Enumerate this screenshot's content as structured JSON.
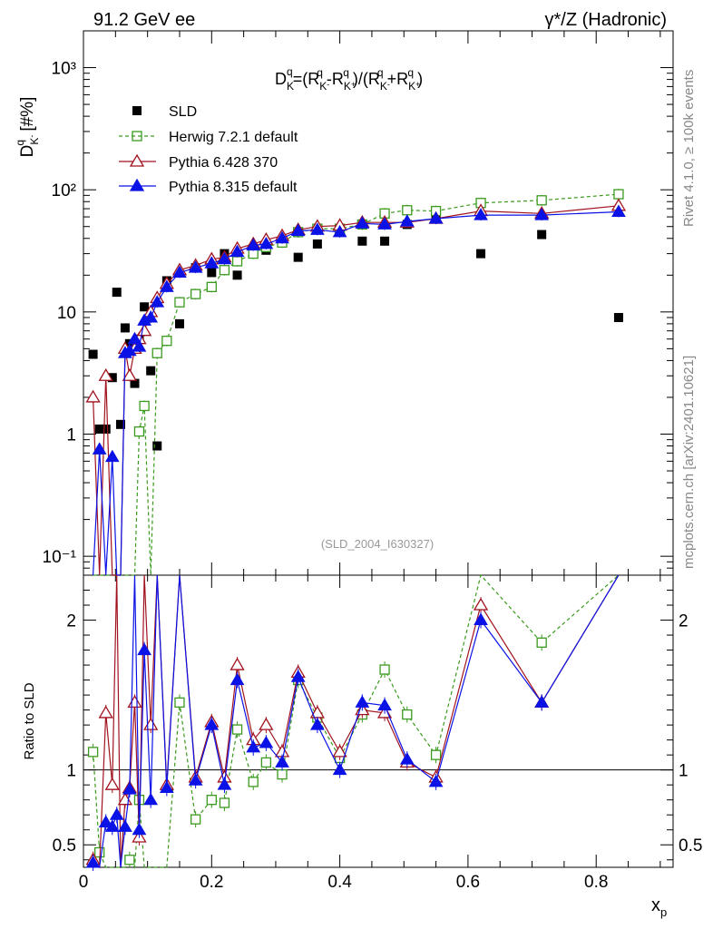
{
  "header": {
    "left_title": "91.2 GeV ee",
    "right_title": "γ*/Z (Hadronic)"
  },
  "side_text": {
    "rivet": "Rivet 4.1.0, ≥ 100k events",
    "mcplots": "mcplots.cern.ch [arXiv:2401.10621]"
  },
  "main_panel": {
    "formula": "D_K^q = (R_K-^q - R_K+^q)/(R_K-^q + R_K+^q)",
    "ylabel": "D_K^q [#%]",
    "yscale": "log",
    "ylim": [
      0.07,
      2000
    ],
    "yticks": [
      {
        "value": 0.1,
        "label": "10⁻¹"
      },
      {
        "value": 1,
        "label": "1"
      },
      {
        "value": 10,
        "label": "10"
      },
      {
        "value": 100,
        "label": "10²"
      },
      {
        "value": 1000,
        "label": "10³"
      }
    ],
    "watermark": "(SLD_2004_I630327)"
  },
  "ratio_panel": {
    "ylabel": "Ratio to SLD",
    "ylim": [
      0.35,
      2.3
    ],
    "yticks": [
      {
        "value": 0.5,
        "label": "0.5"
      },
      {
        "value": 1,
        "label": "1"
      },
      {
        "value": 2,
        "label": "2"
      }
    ]
  },
  "xaxis": {
    "label": "x_p",
    "xlim": [
      0,
      0.92
    ],
    "ticks": [
      {
        "value": 0,
        "label": "0"
      },
      {
        "value": 0.2,
        "label": "0.2"
      },
      {
        "value": 0.4,
        "label": "0.4"
      },
      {
        "value": 0.6,
        "label": "0.6"
      },
      {
        "value": 0.8,
        "label": "0.8"
      }
    ]
  },
  "legend": [
    {
      "key": "sld",
      "label": "SLD"
    },
    {
      "key": "herwig",
      "label": "Herwig 7.2.1 default"
    },
    {
      "key": "py6",
      "label": "Pythia 6.428 370"
    },
    {
      "key": "py8",
      "label": "Pythia 8.315 default"
    }
  ],
  "colors": {
    "sld": "#000000",
    "herwig": "#3a9a1e",
    "py6": "#a0121e",
    "py8": "#0a12e6"
  },
  "chart_data": [
    {
      "type": "scatter",
      "title": "D_K^q",
      "xlabel": "x_p",
      "ylabel": "D_K^q [#%]",
      "yscale": "log",
      "x": [
        0.015,
        0.025,
        0.035,
        0.045,
        0.052,
        0.058,
        0.065,
        0.072,
        0.08,
        0.087,
        0.095,
        0.105,
        0.115,
        0.13,
        0.15,
        0.175,
        0.2,
        0.22,
        0.24,
        0.265,
        0.285,
        0.31,
        0.335,
        0.365,
        0.4,
        0.435,
        0.47,
        0.505,
        0.55,
        0.62,
        0.715,
        0.835
      ],
      "series": [
        {
          "name": "SLD",
          "key": "sld",
          "values": [
            4.5,
            1.1,
            1.1,
            2.9,
            14.5,
            1.2,
            7.4,
            5.5,
            2.6,
            6.0,
            11.0,
            3.3,
            0.8,
            18.0,
            8.0,
            23.0,
            21.0,
            30.0,
            20.0,
            33.0,
            32.0,
            38.0,
            28.0,
            36.0,
            45.0,
            38.0,
            38.0,
            52.0,
            60.0,
            30.0,
            43.0,
            9.0
          ]
        },
        {
          "name": "Herwig 7.2.1 default",
          "key": "herwig",
          "values": [
            0.05,
            0.05,
            0.05,
            0.05,
            0.05,
            0.05,
            0.05,
            0.05,
            0.05,
            1.05,
            1.7,
            0.05,
            4.6,
            5.8,
            12.0,
            14.0,
            16.0,
            22.0,
            26.0,
            30.0,
            34.0,
            37.0,
            45.0,
            48.0,
            48.0,
            52.0,
            64.0,
            68.0,
            67.0,
            78.0,
            82.0,
            92.0
          ]
        },
        {
          "name": "Pythia 6.428 370",
          "key": "py6",
          "values": [
            2.0,
            0.05,
            3.0,
            0.05,
            0.05,
            0.05,
            5.0,
            3.0,
            5.0,
            6.0,
            7.0,
            10.0,
            13.0,
            17.0,
            22.0,
            24.0,
            27.0,
            28.0,
            33.0,
            36.0,
            39.0,
            42.0,
            47.0,
            50.0,
            51.0,
            54.0,
            54.0,
            54.0,
            58.0,
            67.0,
            64.0,
            74.0
          ]
        },
        {
          "name": "Pythia 8.315 default",
          "key": "py8",
          "values": [
            0.05,
            0.75,
            0.05,
            0.65,
            0.05,
            0.05,
            4.6,
            4.8,
            6.0,
            5.2,
            8.5,
            9.0,
            12.0,
            16.0,
            21.0,
            23.0,
            25.0,
            27.0,
            31.0,
            35.0,
            36.0,
            40.0,
            46.0,
            47.0,
            45.0,
            53.0,
            52.0,
            55.0,
            58.0,
            62.0,
            62.0,
            66.0
          ]
        }
      ]
    },
    {
      "type": "line",
      "title": "Ratio to SLD",
      "xlabel": "x_p",
      "ylabel": "Ratio to SLD",
      "x": [
        0.015,
        0.025,
        0.035,
        0.045,
        0.052,
        0.058,
        0.065,
        0.072,
        0.08,
        0.087,
        0.095,
        0.105,
        0.115,
        0.13,
        0.15,
        0.175,
        0.2,
        0.22,
        0.24,
        0.265,
        0.285,
        0.31,
        0.335,
        0.365,
        0.4,
        0.435,
        0.47,
        0.505,
        0.55,
        0.62,
        0.715,
        0.835
      ],
      "series": [
        {
          "name": "Herwig 7.2.1 default",
          "key": "herwig",
          "values": [
            1.12,
            0.45,
            0.2,
            0.15,
            0.2,
            0.3,
            0.2,
            0.4,
            0.2,
            0.8,
            0.2,
            0.3,
            0.2,
            0.33,
            1.45,
            0.67,
            0.8,
            0.78,
            1.27,
            0.92,
            1.05,
            0.97,
            1.6,
            1.35,
            1.08,
            1.37,
            1.67,
            1.37,
            1.1,
            2.4,
            1.85,
            4.0
          ]
        },
        {
          "name": "Pythia 6.428 370",
          "key": "py6",
          "values": [
            0.4,
            0.2,
            1.38,
            0.9,
            2.3,
            0.35,
            0.8,
            0.88,
            1.45,
            0.55,
            3.0,
            1.3,
            2.3,
            0.9,
            2.3,
            0.95,
            1.32,
            0.95,
            1.7,
            1.2,
            1.3,
            1.12,
            1.65,
            1.38,
            1.12,
            1.4,
            1.38,
            1.05,
            0.95,
            2.1,
            1.45,
            4.0
          ]
        },
        {
          "name": "Pythia 8.315 default",
          "key": "py8",
          "values": [
            0.38,
            0.2,
            0.65,
            0.62,
            0.7,
            0.2,
            0.62,
            0.87,
            2.3,
            0.6,
            1.8,
            0.8,
            2.3,
            0.88,
            2.3,
            0.93,
            1.3,
            0.9,
            1.6,
            1.15,
            1.18,
            1.05,
            1.62,
            1.3,
            1.0,
            1.45,
            1.43,
            1.07,
            0.92,
            2.0,
            1.45,
            4.0
          ]
        }
      ]
    }
  ]
}
